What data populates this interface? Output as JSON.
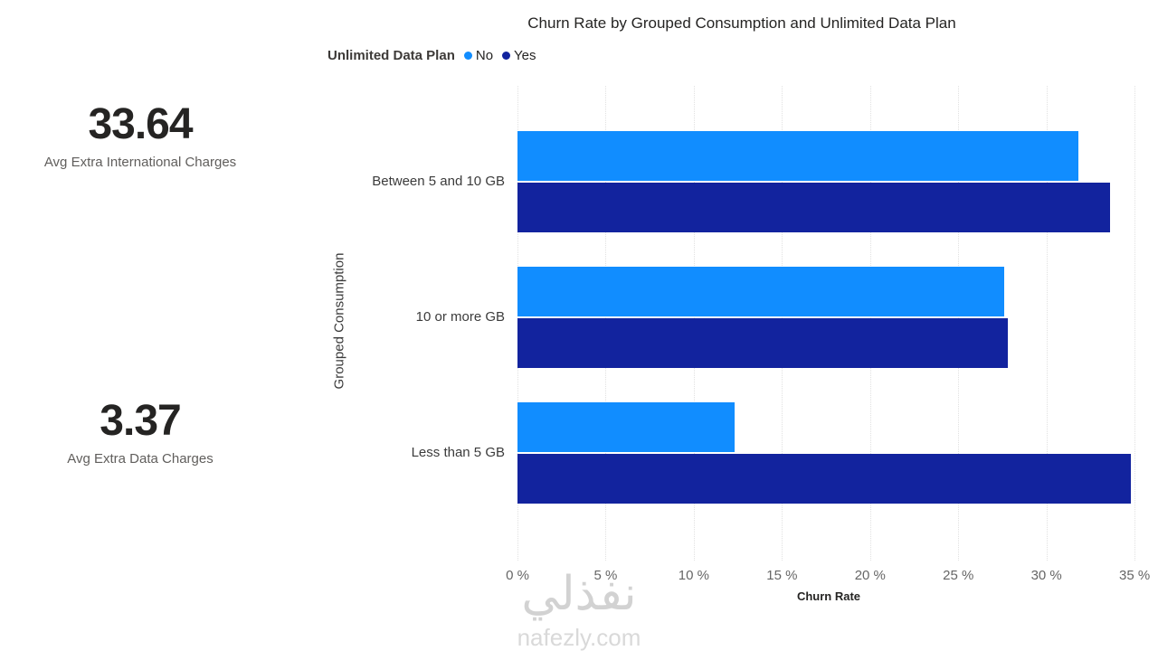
{
  "kpis": [
    {
      "value": "33.64",
      "label": "Avg Extra International Charges"
    },
    {
      "value": "3.37",
      "label": "Avg Extra Data Charges"
    }
  ],
  "legend": {
    "label": "Unlimited Data Plan",
    "items": [
      {
        "label": "No",
        "color": "#118DFF"
      },
      {
        "label": "Yes",
        "color": "#12239E"
      }
    ]
  },
  "chart_data": {
    "type": "bar",
    "orientation": "horizontal",
    "title": "Churn Rate by Grouped Consumption and Unlimited Data Plan",
    "categories": [
      "Between 5 and 10 GB",
      "10 or more GB",
      "Less than 5 GB"
    ],
    "series": [
      {
        "name": "No",
        "color": "#118DFF",
        "values": [
          31.8,
          27.6,
          12.3
        ]
      },
      {
        "name": "Yes",
        "color": "#12239E",
        "values": [
          33.6,
          27.8,
          34.8
        ]
      }
    ],
    "xlabel": "Churn Rate",
    "ylabel": "Grouped Consumption",
    "xlim": [
      0,
      35.3
    ],
    "xticks": [
      0,
      5,
      10,
      15,
      20,
      25,
      30,
      35
    ],
    "tick_suffix": " %",
    "grid": "vertical-dotted",
    "legend_position": "top"
  },
  "watermark": {
    "text": "نفذلي",
    "subtext": "nafezly.com"
  }
}
